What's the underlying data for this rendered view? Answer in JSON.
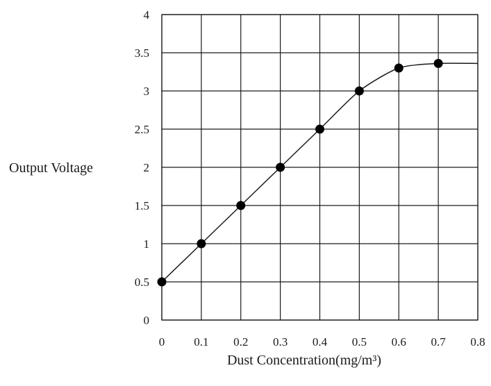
{
  "chart_data": {
    "type": "line",
    "title": "",
    "xlabel": "Dust Concentration(mg/m³)",
    "ylabel": "Output Voltage",
    "xlim": [
      0,
      0.8
    ],
    "ylim": [
      0,
      4
    ],
    "x_ticks": [
      "0",
      "0.1",
      "0.2",
      "0.3",
      "0.4",
      "0.5",
      "0.6",
      "0.7",
      "0.8"
    ],
    "y_ticks": [
      "0",
      "0.5",
      "1",
      "1.5",
      "2",
      "2.5",
      "3",
      "3.5",
      "4"
    ],
    "grid": true,
    "series": [
      {
        "x": [
          0,
          0.1,
          0.2,
          0.3,
          0.4,
          0.5,
          0.6,
          0.7
        ],
        "y": [
          0.5,
          1.0,
          1.5,
          2.0,
          2.5,
          3.0,
          3.3,
          3.36
        ],
        "line_continues_to_x": 0.8,
        "line_continues_to_y": 3.36
      }
    ],
    "colors": {
      "line": "#1a1a1a",
      "grid": "#1a1a1a",
      "marker": "#000000"
    }
  }
}
